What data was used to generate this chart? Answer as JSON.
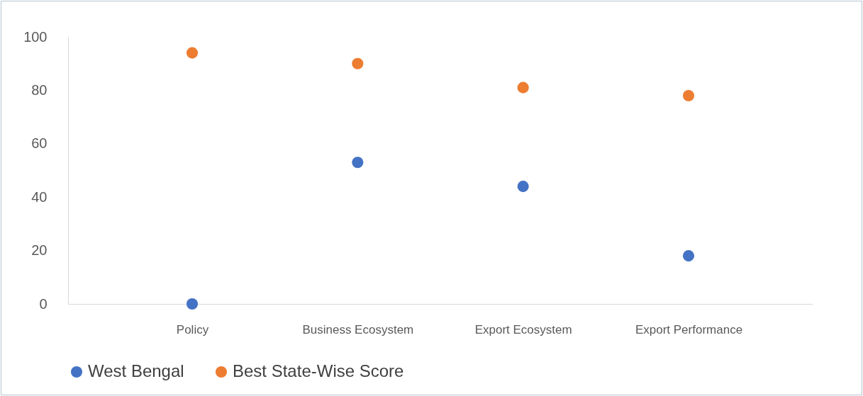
{
  "chart_data": {
    "type": "scatter",
    "categories": [
      "Policy",
      "Business Ecosystem",
      "Export Ecosystem",
      "Export Performance"
    ],
    "series": [
      {
        "name": "West Bengal",
        "color": "#4472c4",
        "values": [
          0,
          53,
          44,
          18
        ]
      },
      {
        "name": "Best State-Wise Score",
        "color": "#ed7d31",
        "values": [
          94,
          90,
          81,
          78
        ]
      }
    ],
    "ylim": [
      0,
      100
    ],
    "yticks": [
      0,
      20,
      40,
      60,
      80,
      100
    ],
    "grid": false,
    "legend": "bottom",
    "marker": "circle"
  }
}
